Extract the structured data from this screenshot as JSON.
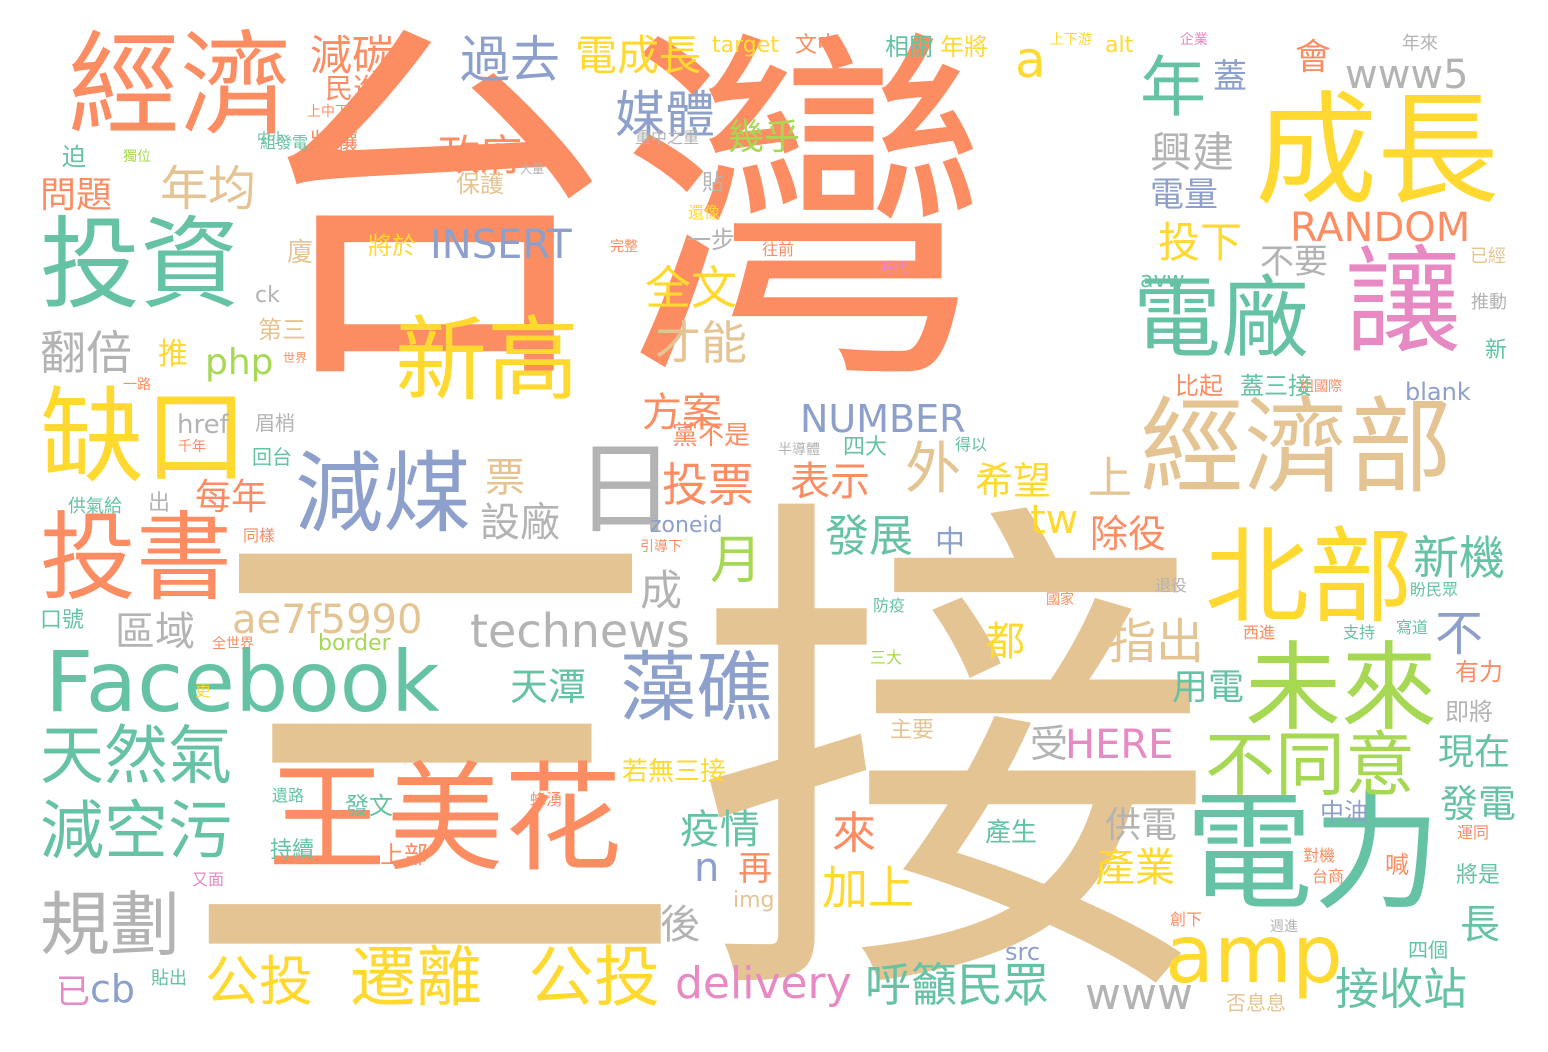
{
  "palette": {
    "orange": "#fc8d62",
    "tan": "#e5c494",
    "yellow": "#ffd92f",
    "green": "#66c2a5",
    "gray": "#b3b3b3",
    "blue": "#8da0cb",
    "pink": "#e78ac3",
    "lime": "#a6d854"
  },
  "words": [
    {
      "text": "台灣",
      "color": "orange"
    },
    {
      "text": "三接",
      "color": "tan"
    },
    {
      "text": "經濟",
      "color": "orange"
    },
    {
      "text": "成長",
      "color": "yellow"
    },
    {
      "text": "投資",
      "color": "green"
    },
    {
      "text": "新高",
      "color": "yellow"
    },
    {
      "text": "讓",
      "color": "pink"
    },
    {
      "text": "電廠",
      "color": "green"
    },
    {
      "text": "缺口",
      "color": "yellow"
    },
    {
      "text": "經濟部",
      "color": "tan"
    },
    {
      "text": "減煤",
      "color": "blue"
    },
    {
      "text": "日",
      "color": "gray"
    },
    {
      "text": "投書",
      "color": "orange"
    },
    {
      "text": "北部",
      "color": "yellow"
    },
    {
      "text": "Facebook",
      "color": "green"
    },
    {
      "text": "未來",
      "color": "lime"
    },
    {
      "text": "藻礁",
      "color": "blue"
    },
    {
      "text": "王美花",
      "color": "orange"
    },
    {
      "text": "電力",
      "color": "green"
    },
    {
      "text": "不同意",
      "color": "lime"
    },
    {
      "text": "amp",
      "color": "yellow"
    },
    {
      "text": "天然氣",
      "color": "green"
    },
    {
      "text": "減空污",
      "color": "green"
    },
    {
      "text": "規劃",
      "color": "gray"
    },
    {
      "text": "遷離",
      "color": "yellow"
    },
    {
      "text": "公投",
      "color": "yellow"
    },
    {
      "text": "公投",
      "color": "yellow"
    },
    {
      "text": "technews",
      "color": "gray"
    },
    {
      "text": "ae7f5990",
      "color": "tan"
    },
    {
      "text": "年",
      "color": "green"
    },
    {
      "text": "www5",
      "color": "gray"
    },
    {
      "text": "過去",
      "color": "blue"
    },
    {
      "text": "電成長",
      "color": "yellow"
    },
    {
      "text": "減碳",
      "color": "orange"
    },
    {
      "text": "媒體",
      "color": "blue"
    },
    {
      "text": "年均",
      "color": "tan"
    },
    {
      "text": "政府",
      "color": "orange"
    },
    {
      "text": "興建",
      "color": "gray"
    },
    {
      "text": "電量",
      "color": "blue"
    },
    {
      "text": "蓋",
      "color": "blue"
    },
    {
      "text": "會",
      "color": "orange"
    },
    {
      "text": "a",
      "color": "yellow"
    },
    {
      "text": "幾乎",
      "color": "lime"
    },
    {
      "text": "民進",
      "color": "orange"
    },
    {
      "text": "問題",
      "color": "orange"
    },
    {
      "text": "INSERT",
      "color": "blue"
    },
    {
      "text": "RANDOM",
      "color": "orange"
    },
    {
      "text": "投下",
      "color": "yellow"
    },
    {
      "text": "不要",
      "color": "gray"
    },
    {
      "text": "全文",
      "color": "yellow"
    },
    {
      "text": "才能",
      "color": "tan"
    },
    {
      "text": "翻倍",
      "color": "gray"
    },
    {
      "text": "php",
      "color": "lime"
    },
    {
      "text": "推",
      "color": "yellow"
    },
    {
      "text": "NUMBER",
      "color": "blue"
    },
    {
      "text": "方案",
      "color": "orange"
    },
    {
      "text": "外",
      "color": "tan"
    },
    {
      "text": "希望",
      "color": "yellow"
    },
    {
      "text": "上",
      "color": "tan"
    },
    {
      "text": "票",
      "color": "tan"
    },
    {
      "text": "投票",
      "color": "orange"
    },
    {
      "text": "表示",
      "color": "orange"
    },
    {
      "text": "每年",
      "color": "orange"
    },
    {
      "text": "設廠",
      "color": "gray"
    },
    {
      "text": "tw",
      "color": "yellow"
    },
    {
      "text": "發展",
      "color": "green"
    },
    {
      "text": "除役",
      "color": "orange"
    },
    {
      "text": "月",
      "color": "lime"
    },
    {
      "text": "新機",
      "color": "green"
    },
    {
      "text": "成",
      "color": "gray"
    },
    {
      "text": "區域",
      "color": "gray"
    },
    {
      "text": "天潭",
      "color": "green"
    },
    {
      "text": "指出",
      "color": "tan"
    },
    {
      "text": "不",
      "color": "blue"
    },
    {
      "text": "都",
      "color": "yellow"
    },
    {
      "text": "用電",
      "color": "green"
    },
    {
      "text": "受",
      "color": "gray"
    },
    {
      "text": "HERE",
      "color": "pink"
    },
    {
      "text": "現在",
      "color": "green"
    },
    {
      "text": "疫情",
      "color": "green"
    },
    {
      "text": "來",
      "color": "orange"
    },
    {
      "text": "n",
      "color": "blue"
    },
    {
      "text": "供電",
      "color": "gray"
    },
    {
      "text": "產業",
      "color": "yellow"
    },
    {
      "text": "發電",
      "color": "green"
    },
    {
      "text": "再",
      "color": "orange"
    },
    {
      "text": "加上",
      "color": "yellow"
    },
    {
      "text": "後",
      "color": "gray"
    },
    {
      "text": "長",
      "color": "green"
    },
    {
      "text": "delivery",
      "color": "pink"
    },
    {
      "text": "呼籲民眾",
      "color": "green"
    },
    {
      "text": "www",
      "color": "gray"
    },
    {
      "text": "接收站",
      "color": "green"
    },
    {
      "text": "cb",
      "color": "blue"
    },
    {
      "text": "已",
      "color": "pink"
    },
    {
      "text": "保護",
      "color": "tan"
    },
    {
      "text": "一步",
      "color": "gray"
    },
    {
      "text": "廈",
      "color": "tan"
    },
    {
      "text": "第三",
      "color": "tan"
    },
    {
      "text": "比起",
      "color": "orange"
    },
    {
      "text": "蓋三接",
      "color": "green"
    },
    {
      "text": "blank",
      "color": "blue"
    },
    {
      "text": "中",
      "color": "blue"
    },
    {
      "text": "黨不是",
      "color": "orange"
    },
    {
      "text": "四大",
      "color": "green"
    },
    {
      "text": "若無三接",
      "color": "yellow"
    },
    {
      "text": "主要",
      "color": "tan"
    },
    {
      "text": "即將",
      "color": "gray"
    },
    {
      "text": "有力",
      "color": "orange"
    },
    {
      "text": "中油",
      "color": "blue"
    },
    {
      "text": "產生",
      "color": "green"
    },
    {
      "text": "發文",
      "color": "green"
    },
    {
      "text": "上部",
      "color": "orange"
    },
    {
      "text": "持續",
      "color": "green"
    },
    {
      "text": "將是",
      "color": "green"
    },
    {
      "text": "喊",
      "color": "orange"
    },
    {
      "text": "alt",
      "color": "yellow"
    },
    {
      "text": "src",
      "color": "blue"
    },
    {
      "text": "img",
      "color": "tan"
    },
    {
      "text": "border",
      "color": "lime"
    },
    {
      "text": "zoneid",
      "color": "blue"
    },
    {
      "text": "href",
      "color": "gray"
    },
    {
      "text": "avw",
      "color": "green"
    },
    {
      "text": "ck",
      "color": "gray"
    },
    {
      "text": "target",
      "color": "yellow"
    },
    {
      "text": "文中",
      "color": "orange"
    },
    {
      "text": "相關",
      "color": "green"
    },
    {
      "text": "年將",
      "color": "yellow"
    },
    {
      "text": "將讓",
      "color": "orange"
    },
    {
      "text": "將於",
      "color": "yellow"
    },
    {
      "text": "貼",
      "color": "gray"
    },
    {
      "text": "迫",
      "color": "green"
    },
    {
      "text": "出",
      "color": "gray"
    },
    {
      "text": "回台",
      "color": "green"
    },
    {
      "text": "眉梢",
      "color": "gray"
    },
    {
      "text": "口號",
      "color": "green"
    },
    {
      "text": "供氣給",
      "color": "green"
    },
    {
      "text": "四個",
      "color": "green"
    },
    {
      "text": "否息息",
      "color": "tan"
    },
    {
      "text": "年來",
      "color": "gray"
    },
    {
      "text": "推動",
      "color": "gray"
    },
    {
      "text": "新",
      "color": "green"
    },
    {
      "text": "已經",
      "color": "tan"
    },
    {
      "text": "貼出",
      "color": "green"
    },
    {
      "text": "組發電",
      "color": "green"
    },
    {
      "text": "上中下游",
      "color": "orange"
    },
    {
      "text": "遺路",
      "color": "green"
    },
    {
      "text": "又面",
      "color": "pink"
    },
    {
      "text": "更",
      "color": "yellow"
    },
    {
      "text": "中小",
      "color": "green"
    },
    {
      "text": "重中之重",
      "color": "gray"
    },
    {
      "text": "還像",
      "color": "yellow"
    },
    {
      "text": "往前",
      "color": "orange"
    },
    {
      "text": "時代",
      "color": "pink"
    },
    {
      "text": "得以",
      "color": "green"
    },
    {
      "text": "三大",
      "color": "lime"
    },
    {
      "text": "防疫",
      "color": "green"
    },
    {
      "text": "蜂湧",
      "color": "orange"
    },
    {
      "text": "台商",
      "color": "orange"
    },
    {
      "text": "創下",
      "color": "orange"
    },
    {
      "text": "運同",
      "color": "orange"
    },
    {
      "text": "對機",
      "color": "orange"
    },
    {
      "text": "盼民眾",
      "color": "green"
    },
    {
      "text": "寫道",
      "color": "green"
    },
    {
      "text": "支持",
      "color": "green"
    },
    {
      "text": "西進",
      "color": "orange"
    },
    {
      "text": "退役",
      "color": "gray"
    },
    {
      "text": "國家",
      "color": "orange"
    },
    {
      "text": "引導下",
      "color": "orange"
    },
    {
      "text": "半導體",
      "color": "gray"
    },
    {
      "text": "組國際",
      "color": "orange"
    },
    {
      "text": "同樣",
      "color": "orange"
    },
    {
      "text": "全世界",
      "color": "orange"
    },
    {
      "text": "千年",
      "color": "orange"
    },
    {
      "text": "世界",
      "color": "orange"
    },
    {
      "text": "一路",
      "color": "orange"
    },
    {
      "text": "大量",
      "color": "gray"
    },
    {
      "text": "獨位",
      "color": "lime"
    },
    {
      "text": "上下游",
      "color": "yellow"
    },
    {
      "text": "企業",
      "color": "pink"
    },
    {
      "text": "完整",
      "color": "orange"
    },
    {
      "text": "週進",
      "color": "gray"
    }
  ]
}
